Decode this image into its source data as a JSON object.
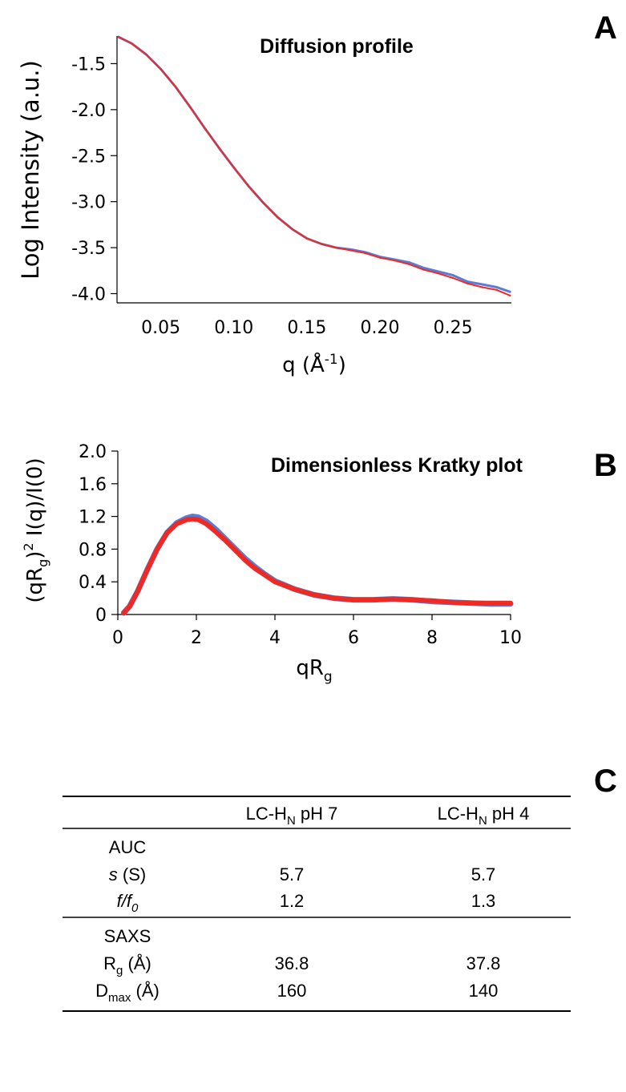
{
  "panels": {
    "a": "A",
    "b": "B",
    "c": "C"
  },
  "chart_data": [
    {
      "type": "line",
      "title": "Diffusion profile",
      "xlabel": "q (Å-1)",
      "xlabel_parts": {
        "main": "q (Å",
        "sup": "-1",
        "end": ")"
      },
      "ylabel": "Log Intensity (a.u.)",
      "xlim": [
        0.02,
        0.29
      ],
      "ylim": [
        -4.1,
        -1.2
      ],
      "xticks": [
        "0.05",
        "0.10",
        "0.15",
        "0.20",
        "0.25"
      ],
      "yticks": [
        "-1.5",
        "-2.0",
        "-2.5",
        "-3.0",
        "-3.5",
        "-4.0"
      ],
      "series": [
        {
          "color": "#5b7bd5",
          "x": [
            0.021,
            0.03,
            0.04,
            0.05,
            0.06,
            0.07,
            0.08,
            0.09,
            0.1,
            0.11,
            0.12,
            0.13,
            0.14,
            0.15,
            0.16,
            0.17,
            0.18,
            0.19,
            0.2,
            0.21,
            0.22,
            0.23,
            0.24,
            0.25,
            0.26,
            0.27,
            0.28,
            0.289
          ],
          "y": [
            -1.21,
            -1.28,
            -1.4,
            -1.56,
            -1.75,
            -1.97,
            -2.2,
            -2.42,
            -2.63,
            -2.83,
            -3.01,
            -3.17,
            -3.3,
            -3.4,
            -3.46,
            -3.5,
            -3.52,
            -3.55,
            -3.6,
            -3.63,
            -3.66,
            -3.72,
            -3.76,
            -3.8,
            -3.87,
            -3.9,
            -3.93,
            -3.98
          ]
        },
        {
          "color": "#ee2a24",
          "x": [
            0.021,
            0.03,
            0.04,
            0.05,
            0.06,
            0.07,
            0.08,
            0.09,
            0.1,
            0.11,
            0.12,
            0.13,
            0.14,
            0.15,
            0.16,
            0.17,
            0.18,
            0.19,
            0.2,
            0.21,
            0.22,
            0.23,
            0.24,
            0.25,
            0.26,
            0.27,
            0.28,
            0.289
          ],
          "y": [
            -1.21,
            -1.28,
            -1.4,
            -1.56,
            -1.75,
            -1.97,
            -2.2,
            -2.42,
            -2.63,
            -2.83,
            -3.01,
            -3.17,
            -3.3,
            -3.4,
            -3.46,
            -3.5,
            -3.53,
            -3.56,
            -3.61,
            -3.64,
            -3.68,
            -3.74,
            -3.78,
            -3.83,
            -3.89,
            -3.93,
            -3.96,
            -4.02
          ]
        }
      ]
    },
    {
      "type": "line",
      "title": "Dimensionless Kratky plot",
      "xlabel": "qRg",
      "xlabel_parts": {
        "main": "qR",
        "sub": "g"
      },
      "ylabel": "(qRg)2 I(q)/I(0)",
      "ylabel_parts": {
        "a": "(qR",
        "sub": "g",
        "b": ")",
        "sup": "2",
        "c": " I(q)/I(0)"
      },
      "xlim": [
        0,
        10
      ],
      "ylim": [
        0,
        2.0
      ],
      "xticks": [
        "0",
        "2",
        "4",
        "6",
        "8",
        "10"
      ],
      "yticks": [
        "0",
        "0.4",
        "0.8",
        "1.2",
        "1.6",
        "2.0"
      ],
      "series": [
        {
          "color": "#5b7bd5",
          "x": [
            0.15,
            0.3,
            0.5,
            0.75,
            1.0,
            1.25,
            1.5,
            1.75,
            1.9,
            2.05,
            2.25,
            2.5,
            2.75,
            3.0,
            3.25,
            3.5,
            3.75,
            4.0,
            4.5,
            5.0,
            5.5,
            6.0,
            6.5,
            7.0,
            7.5,
            8.0,
            8.5,
            9.0,
            9.5,
            10.0
          ],
          "y": [
            0.02,
            0.1,
            0.28,
            0.55,
            0.8,
            1.0,
            1.12,
            1.18,
            1.2,
            1.19,
            1.14,
            1.04,
            0.92,
            0.8,
            0.68,
            0.58,
            0.49,
            0.41,
            0.31,
            0.24,
            0.2,
            0.18,
            0.18,
            0.19,
            0.18,
            0.16,
            0.15,
            0.14,
            0.13,
            0.13
          ]
        },
        {
          "color": "#ee2a24",
          "x": [
            0.15,
            0.3,
            0.5,
            0.75,
            1.0,
            1.25,
            1.5,
            1.75,
            1.9,
            2.05,
            2.25,
            2.5,
            2.75,
            3.0,
            3.25,
            3.5,
            3.75,
            4.0,
            4.5,
            5.0,
            5.5,
            6.0,
            6.5,
            7.0,
            7.5,
            8.0,
            8.5,
            9.0,
            9.5,
            10.0
          ],
          "y": [
            0.02,
            0.1,
            0.28,
            0.55,
            0.8,
            1.0,
            1.11,
            1.16,
            1.17,
            1.16,
            1.11,
            1.01,
            0.9,
            0.78,
            0.66,
            0.56,
            0.48,
            0.4,
            0.31,
            0.24,
            0.2,
            0.18,
            0.18,
            0.19,
            0.18,
            0.17,
            0.15,
            0.14,
            0.14,
            0.14
          ]
        }
      ]
    },
    {
      "type": "table",
      "columns": [
        {
          "main": "LC-H",
          "sub": "N",
          "rest": " pH 7"
        },
        {
          "main": "LC-H",
          "sub": "N",
          "rest": " pH 4"
        }
      ],
      "sections": [
        {
          "name": "AUC",
          "rows": [
            {
              "label": "s (S)",
              "label_parts": {
                "it": "s",
                "rest": " (S)"
              },
              "values": [
                "5.7",
                "5.7"
              ]
            },
            {
              "label": "f/f0",
              "label_parts": {
                "it": "f/f",
                "it_sub": "0"
              },
              "values": [
                "1.2",
                "1.3"
              ]
            }
          ]
        },
        {
          "name": "SAXS",
          "rows": [
            {
              "label": "Rg (Å)",
              "label_parts": {
                "main": "R",
                "sub": "g",
                "rest": " (Å)"
              },
              "values": [
                "36.8",
                "37.8"
              ]
            },
            {
              "label": "Dmax (Å)",
              "label_parts": {
                "main": "D",
                "sub": "max",
                "rest": " (Å)"
              },
              "values": [
                "160",
                "140"
              ]
            }
          ]
        }
      ]
    }
  ]
}
